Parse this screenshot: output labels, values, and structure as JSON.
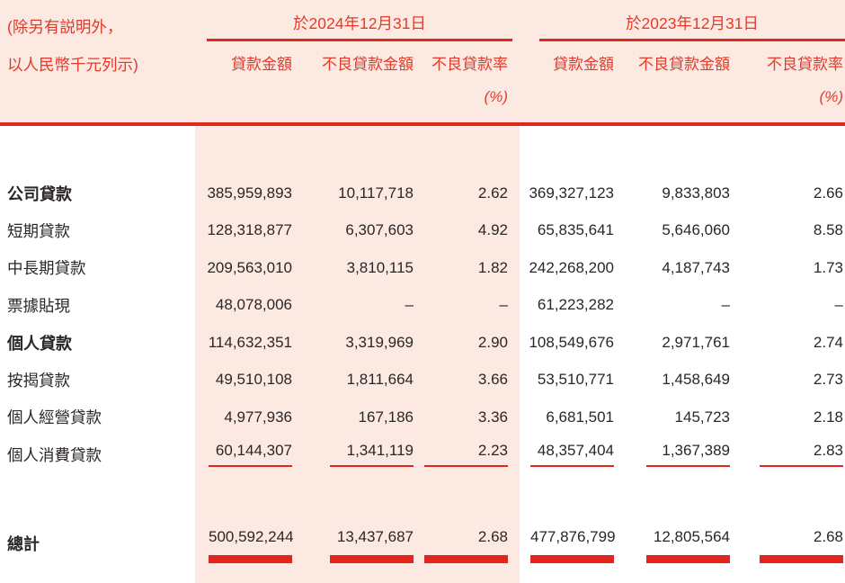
{
  "colors": {
    "accent_red": "#e2261b",
    "header_text_red": "#e23b2c",
    "pink_bg": "#fce9e2",
    "text_ink": "#2b2627"
  },
  "note": {
    "line1": "(除另有説明外，",
    "line2": "以人民幣千元列示)"
  },
  "header": {
    "group_2024": "於2024年12月31日",
    "group_2023": "於2023年12月31日",
    "columns": [
      "貸款金額",
      "不良貸款金額",
      "不良貸款率",
      "貸款金額",
      "不良貸款金額",
      "不良貸款率"
    ],
    "pct_label": "(%)"
  },
  "table": {
    "rows": [
      {
        "id": "corporate-loans",
        "label": "公司貸款",
        "bold": true,
        "underline": false,
        "values": [
          "385,959,893",
          "10,117,718",
          "2.62",
          "369,327,123",
          "9,833,803",
          "2.66"
        ]
      },
      {
        "id": "short-term-loans",
        "label": "短期貸款",
        "bold": false,
        "underline": false,
        "values": [
          "128,318,877",
          "6,307,603",
          "4.92",
          "65,835,641",
          "5,646,060",
          "8.58"
        ]
      },
      {
        "id": "medium-long-term-loans",
        "label": "中長期貸款",
        "bold": false,
        "underline": false,
        "values": [
          "209,563,010",
          "3,810,115",
          "1.82",
          "242,268,200",
          "4,187,743",
          "1.73"
        ]
      },
      {
        "id": "discounted-bills",
        "label": "票據貼現",
        "bold": false,
        "underline": false,
        "values": [
          "48,078,006",
          "–",
          "–",
          "61,223,282",
          "–",
          "–"
        ]
      },
      {
        "id": "personal-loans",
        "label": "個人貸款",
        "bold": true,
        "underline": false,
        "values": [
          "114,632,351",
          "3,319,969",
          "2.90",
          "108,549,676",
          "2,971,761",
          "2.74"
        ]
      },
      {
        "id": "mortgage-loans",
        "label": "按揭貸款",
        "bold": false,
        "underline": false,
        "values": [
          "49,510,108",
          "1,811,664",
          "3.66",
          "53,510,771",
          "1,458,649",
          "2.73"
        ]
      },
      {
        "id": "personal-business-loans",
        "label": "個人經營貸款",
        "bold": false,
        "underline": false,
        "values": [
          "4,977,936",
          "167,186",
          "3.36",
          "6,681,501",
          "145,723",
          "2.18"
        ]
      },
      {
        "id": "personal-consumption-loans",
        "label": "個人消費貸款",
        "bold": false,
        "underline": true,
        "values": [
          "60,144,307",
          "1,341,119",
          "2.23",
          "48,357,404",
          "1,367,389",
          "2.83"
        ]
      }
    ],
    "total": {
      "label": "總計",
      "values": [
        "500,592,244",
        "13,437,687",
        "2.68",
        "477,876,799",
        "12,805,564",
        "2.68"
      ]
    }
  }
}
